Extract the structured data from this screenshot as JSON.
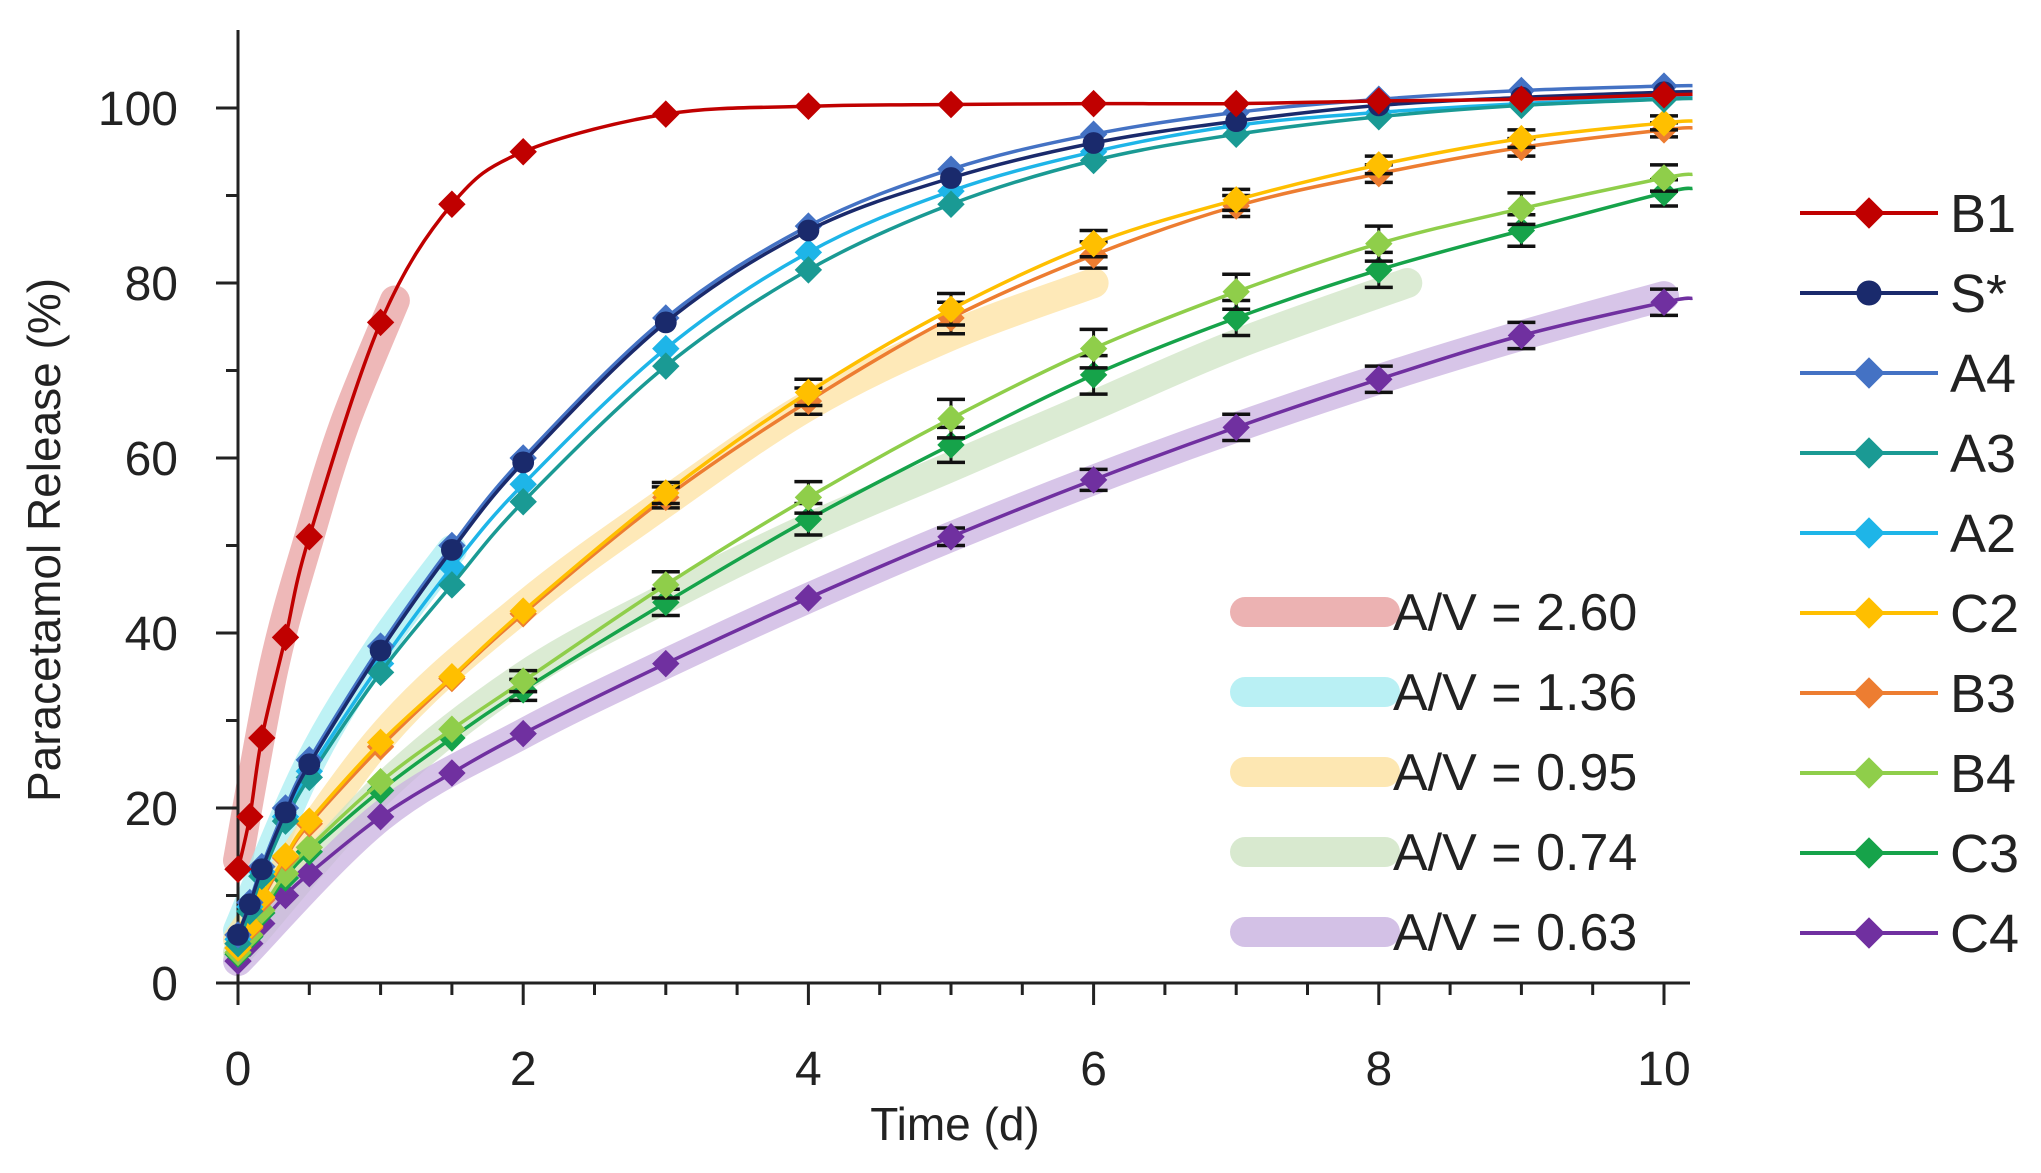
{
  "chart_data": {
    "type": "line",
    "title": "",
    "xlabel": "Time (d)",
    "ylabel": "Paracetamol Release (%)",
    "xlim": [
      0,
      10.2
    ],
    "ylim": [
      0,
      108
    ],
    "x_ticks": [
      0,
      2,
      4,
      6,
      8,
      10
    ],
    "y_ticks": [
      0,
      20,
      40,
      60,
      80,
      100
    ],
    "x_tick_labels": [
      "0",
      "2",
      "4",
      "6",
      "8",
      "10"
    ],
    "y_tick_labels": [
      "0",
      "20",
      "40",
      "60",
      "80",
      "100"
    ],
    "grid": false,
    "legend_position": "right",
    "series": [
      {
        "name": "B1",
        "color": "#c00000",
        "marker": "diamond",
        "x": [
          0,
          0.083,
          0.167,
          0.333,
          0.5,
          1,
          1.5,
          2,
          3,
          4,
          5,
          6,
          7,
          8,
          9,
          10
        ],
        "values": [
          13,
          19,
          28,
          39.5,
          51,
          75.5,
          89,
          95,
          99.3,
          100.2,
          100.4,
          100.5,
          100.5,
          100.8,
          101,
          101.5
        ],
        "errors": []
      },
      {
        "name": "S*",
        "color": "#1a2a6c",
        "marker": "circle",
        "x": [
          0,
          0.083,
          0.167,
          0.333,
          0.5,
          1,
          1.5,
          2,
          3,
          4,
          5,
          6,
          7,
          8,
          9,
          10
        ],
        "values": [
          5.5,
          9,
          13,
          19.5,
          25,
          38,
          49.5,
          59.5,
          75.5,
          86,
          92,
          96,
          98.5,
          100.3,
          101.2,
          101.8
        ],
        "errors": []
      },
      {
        "name": "A4",
        "color": "#4472c4",
        "marker": "diamond",
        "x": [
          0,
          0.083,
          0.167,
          0.333,
          0.5,
          1,
          1.5,
          2,
          3,
          4,
          5,
          6,
          7,
          8,
          9,
          10
        ],
        "values": [
          5.5,
          9.2,
          13.3,
          20,
          25.5,
          38.5,
          50,
          60,
          76,
          86.5,
          93,
          97,
          99.5,
          101,
          102,
          102.5
        ],
        "errors": []
      },
      {
        "name": "A3",
        "color": "#1a9a94",
        "marker": "diamond",
        "x": [
          0,
          0.083,
          0.167,
          0.333,
          0.5,
          1,
          1.5,
          2,
          3,
          4,
          5,
          6,
          7,
          8,
          9,
          10
        ],
        "values": [
          4.5,
          8.2,
          12.2,
          18.5,
          23.5,
          35.5,
          45.5,
          55,
          70.5,
          81.5,
          89,
          94,
          97,
          99,
          100.3,
          101
        ],
        "errors": []
      },
      {
        "name": "A2",
        "color": "#1eb5e8",
        "marker": "diamond",
        "x": [
          0,
          0.083,
          0.167,
          0.333,
          0.5,
          1,
          1.5,
          2,
          3,
          4,
          5,
          6,
          7,
          8,
          9,
          10
        ],
        "values": [
          5,
          8.7,
          12.7,
          19,
          24.2,
          36.5,
          47.5,
          57,
          72.5,
          83.5,
          90.5,
          95,
          98,
          99.5,
          100.5,
          101.2
        ],
        "errors": []
      },
      {
        "name": "C2",
        "color": "#ffbf00",
        "marker": "diamond",
        "x": [
          0,
          0.083,
          0.167,
          0.333,
          0.5,
          1,
          1.5,
          2,
          3,
          4,
          5,
          6,
          7,
          8,
          9,
          10
        ],
        "values": [
          4,
          6.5,
          9.8,
          14.5,
          18.5,
          27.5,
          35,
          42.5,
          56,
          67.5,
          77,
          84.5,
          89.5,
          93.5,
          96.5,
          98.3
        ],
        "errors": [
          0,
          0,
          0,
          0,
          0,
          0,
          0,
          0,
          1.2,
          1.5,
          1.8,
          1.5,
          1.2,
          1,
          1,
          0.8
        ]
      },
      {
        "name": "B3",
        "color": "#ed7d31",
        "marker": "diamond",
        "x": [
          0,
          0.083,
          0.167,
          0.333,
          0.5,
          1,
          1.5,
          2,
          3,
          4,
          5,
          6,
          7,
          8,
          9,
          10
        ],
        "values": [
          4,
          6.3,
          9.5,
          14.3,
          18.2,
          27,
          34.8,
          42.2,
          55.5,
          66.5,
          76,
          83.2,
          88.8,
          92.5,
          95.5,
          97.5
        ],
        "errors": [
          0,
          0,
          0,
          0,
          0,
          0,
          0,
          0,
          1.2,
          1.5,
          1.8,
          1.5,
          1.2,
          1,
          1,
          0.8
        ]
      },
      {
        "name": "B4",
        "color": "#8fce4a",
        "marker": "diamond",
        "x": [
          0,
          0.083,
          0.167,
          0.333,
          0.5,
          1,
          1.5,
          2,
          3,
          4,
          5,
          6,
          7,
          8,
          9,
          10
        ],
        "values": [
          3.5,
          5.5,
          8.3,
          12.5,
          15.5,
          23,
          29,
          34.5,
          45.5,
          55.5,
          64.5,
          72.5,
          79,
          84.5,
          88.5,
          92
        ],
        "errors": [
          0,
          0,
          0,
          0,
          0,
          0,
          0,
          1.2,
          1.5,
          1.8,
          2.2,
          2.2,
          2,
          2,
          1.8,
          1.5
        ]
      },
      {
        "name": "C3",
        "color": "#16a34a",
        "marker": "diamond",
        "x": [
          0,
          0.083,
          0.167,
          0.333,
          0.5,
          1,
          1.5,
          2,
          3,
          4,
          5,
          6,
          7,
          8,
          9,
          10
        ],
        "values": [
          3.3,
          5.3,
          8,
          12,
          15,
          22,
          28,
          33.5,
          43.5,
          53,
          61.5,
          69.5,
          76,
          81.5,
          86,
          90.3
        ],
        "errors": [
          0,
          0,
          0,
          0,
          0,
          0,
          0,
          1.2,
          1.5,
          1.8,
          2,
          2.2,
          2,
          2,
          1.8,
          1.5
        ]
      },
      {
        "name": "C4",
        "color": "#7030a0",
        "marker": "diamond",
        "x": [
          0,
          0.083,
          0.167,
          0.333,
          0.5,
          1,
          1.5,
          2,
          3,
          4,
          5,
          6,
          7,
          8,
          9,
          10
        ],
        "values": [
          2.5,
          4.5,
          6.8,
          10,
          12.5,
          19,
          24,
          28.5,
          36.5,
          44,
          51,
          57.5,
          63.5,
          69,
          74,
          77.8
        ],
        "errors": [
          0,
          0,
          0,
          0,
          0,
          0,
          0,
          0,
          0,
          0,
          1,
          1.2,
          1.5,
          1.5,
          1.5,
          1.5
        ]
      }
    ],
    "bands": [
      {
        "name": "A/V = 2.60",
        "color": "#e8a0a0",
        "x": [
          0,
          0.25,
          0.5,
          0.75,
          1.1
        ],
        "values": [
          14,
          36,
          51,
          64,
          78
        ]
      },
      {
        "name": "A/V = 1.36",
        "color": "#a8edf2",
        "x": [
          0,
          0.5,
          1,
          1.5
        ],
        "values": [
          6,
          25,
          38.5,
          49.5
        ]
      },
      {
        "name": "A/V = 0.95",
        "color": "#fde2a0",
        "x": [
          0,
          1,
          2,
          3,
          4,
          5,
          6
        ],
        "values": [
          5,
          28,
          43,
          55,
          66,
          74,
          80
        ]
      },
      {
        "name": "A/V = 0.74",
        "color": "#cfe4c4",
        "x": [
          0,
          1,
          2,
          3,
          4,
          5,
          6,
          7,
          8.2
        ],
        "values": [
          3.5,
          22,
          35,
          44,
          52,
          59,
          66,
          73,
          80
        ]
      },
      {
        "name": "A/V = 0.63",
        "color": "#c9b2e0",
        "x": [
          0,
          1,
          2,
          3,
          4,
          5,
          6,
          7,
          8,
          9,
          10
        ],
        "values": [
          2.5,
          19,
          28.5,
          36.5,
          44,
          51,
          57.5,
          63.5,
          69,
          74,
          78.5
        ]
      }
    ]
  }
}
